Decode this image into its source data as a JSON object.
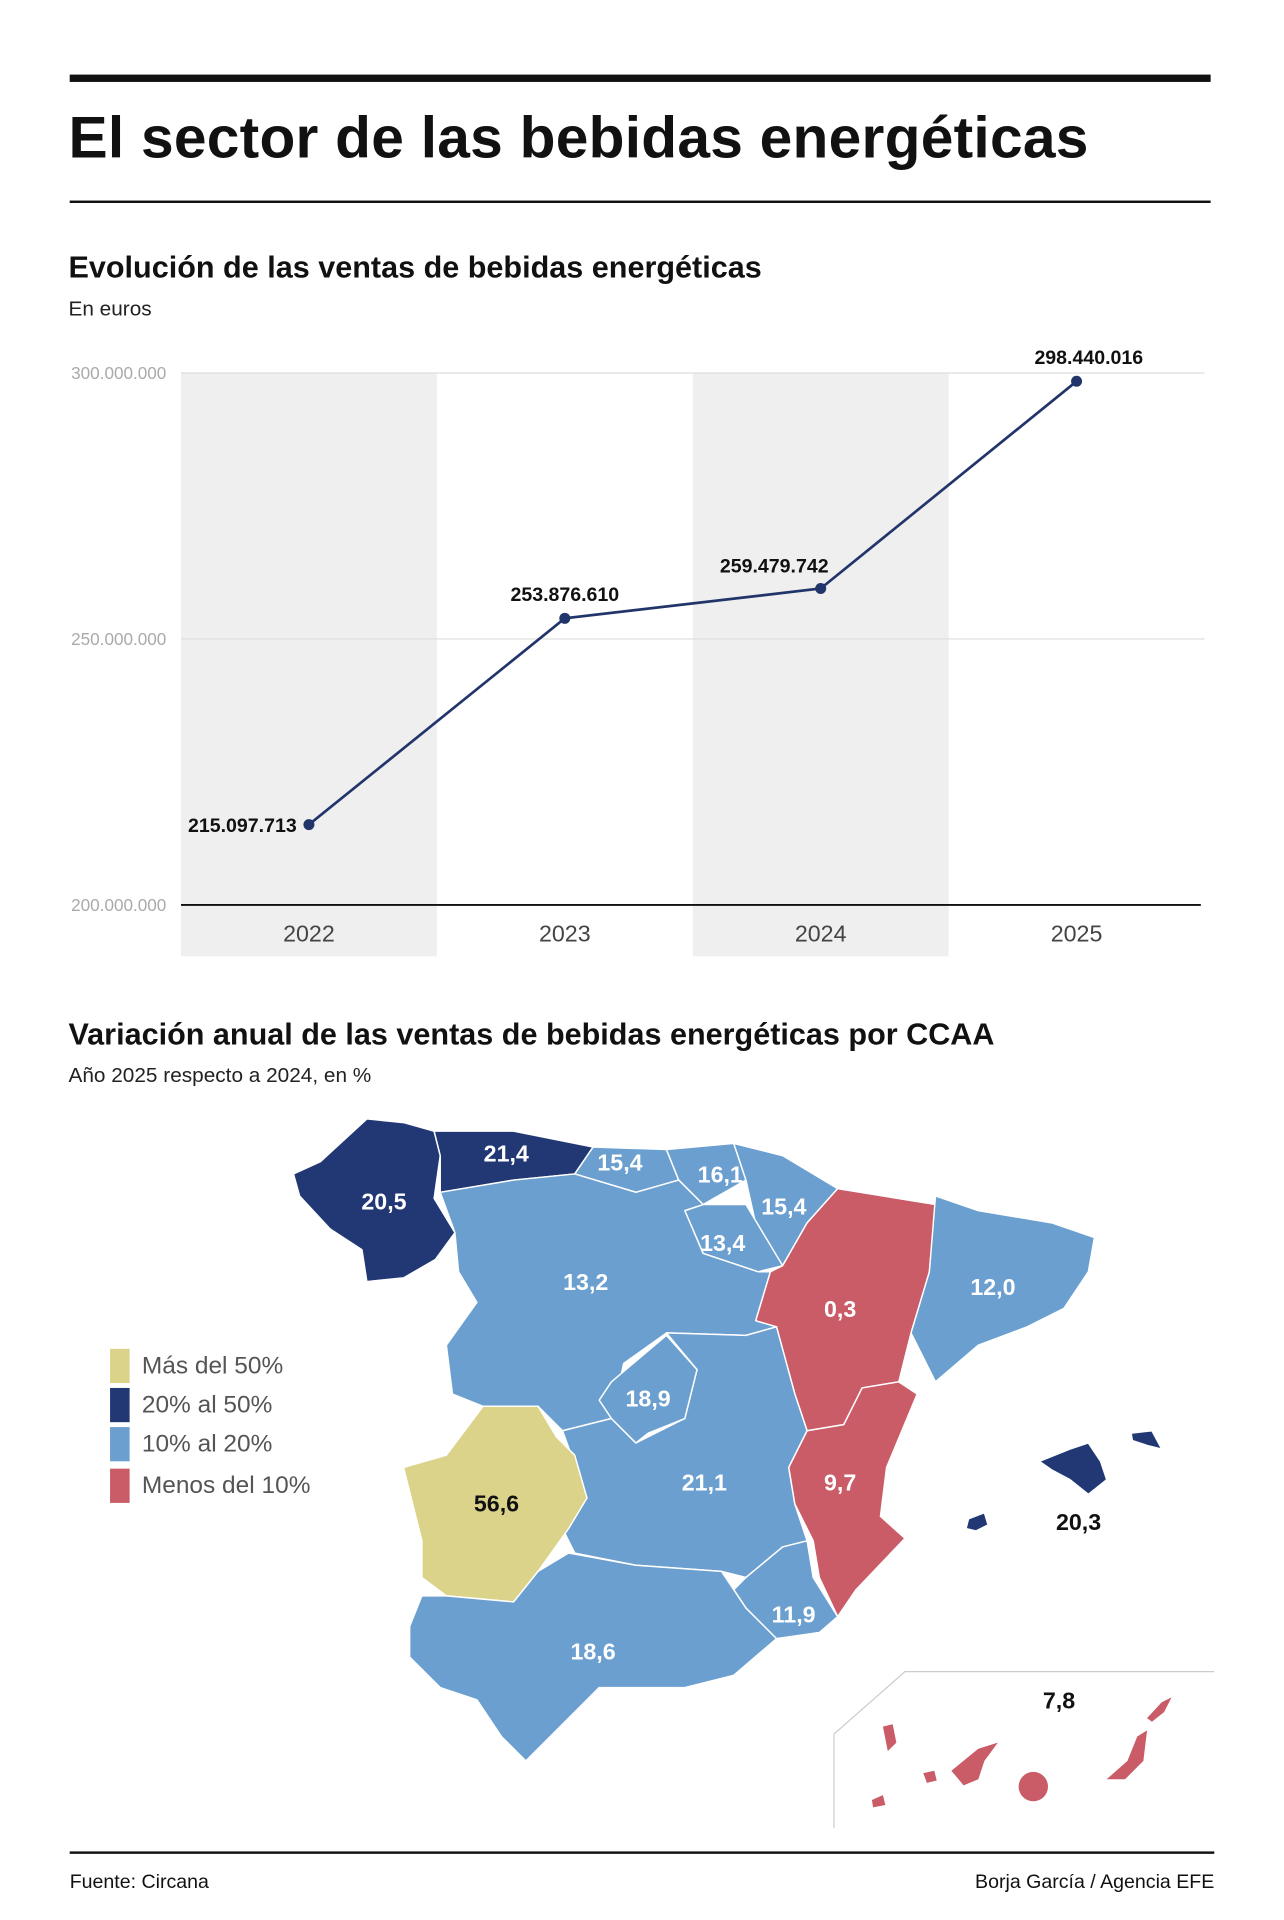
{
  "title": "El sector de las bebidas energéticas",
  "chart_data": [
    {
      "type": "line",
      "title": "Evolución de las ventas de bebidas energéticas",
      "subtitle": "En euros",
      "categories": [
        "2022",
        "2023",
        "2024",
        "2025"
      ],
      "values": [
        215097713,
        253876610,
        259479742,
        298440016
      ],
      "data_labels": [
        "215.097.713",
        "253.876.610",
        "259.479.742",
        "298.440.016"
      ],
      "ylim": [
        200000000,
        300000000
      ],
      "yticks": [
        200000000,
        250000000,
        300000000
      ],
      "ytick_labels": [
        "200.000.000",
        "250.000.000",
        "300.000.000"
      ],
      "grid": true,
      "line_color": "#22356b",
      "band_color": "#efefef"
    },
    {
      "type": "choropleth",
      "title": "Variación anual de las ventas de bebidas energéticas por CCAA",
      "subtitle": "Año 2025 respecto a 2024, en %",
      "legend": [
        {
          "label": "Más del 50%",
          "color": "#dbd38a"
        },
        {
          "label": "20% al 50%",
          "color": "#223875"
        },
        {
          "label": "10% al 20%",
          "color": "#6b9fcf"
        },
        {
          "label": "Menos del 10%",
          "color": "#c95c66"
        }
      ],
      "regions": {
        "galicia": "20,5",
        "asturias": "21,4",
        "cantabria": "15,4",
        "pais_vasco": "16,1",
        "navarra": "15,4",
        "la_rioja": "13,4",
        "castilla_leon": "13,2",
        "aragon": "0,3",
        "cataluna": "12,0",
        "madrid": "18,9",
        "castilla_la_mancha": "21,1",
        "extremadura": "56,6",
        "valencia": "9,7",
        "murcia": "11,9",
        "andalucia": "18,6",
        "baleares": "20,3",
        "canarias": "7,8"
      }
    }
  ],
  "footer": {
    "source": "Fuente: Circana",
    "credit": "Borja García / Agencia EFE"
  }
}
